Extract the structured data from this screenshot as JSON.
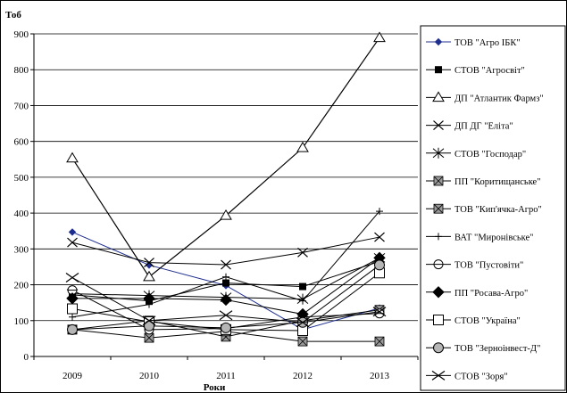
{
  "chart_data": {
    "type": "line",
    "title": "",
    "xlabel": "Роки",
    "ylabel": "Тоб",
    "categories": [
      "2009",
      "2010",
      "2011",
      "2012",
      "2013"
    ],
    "y_ticks": [
      "0",
      "100",
      "200",
      "300",
      "400",
      "500",
      "600",
      "700",
      "800",
      "900"
    ],
    "ylim": [
      0,
      900
    ],
    "grid": "horizontal",
    "legend_position": "right",
    "series": [
      {
        "name": "ТОВ \"Агро ІБК\"",
        "marker": "diamond-small",
        "color": "#1f2f8f",
        "values": [
          347,
          255,
          198,
          75,
          135
        ]
      },
      {
        "name": "СТОВ \"Агросвіт\"",
        "marker": "square-filled",
        "color": "#000000",
        "values": [
          172,
          155,
          205,
          195,
          265
        ]
      },
      {
        "name": "ДП \"Атлантик Фармз\"",
        "marker": "triangle-open",
        "color": "#000000",
        "values": [
          553,
          222,
          393,
          582,
          889
        ]
      },
      {
        "name": "ДП ДГ \"Еліта\"",
        "marker": "x",
        "color": "#000000",
        "values": [
          318,
          262,
          256,
          290,
          333
        ]
      },
      {
        "name": "СТОВ \"Господар\"",
        "marker": "asterisk",
        "color": "#000000",
        "values": [
          175,
          170,
          165,
          160,
          275
        ]
      },
      {
        "name": "ПП \"Коритищанське\"",
        "marker": "square-x-gray",
        "color": "#000000",
        "values": [
          75,
          100,
          55,
          100,
          130
        ]
      },
      {
        "name": "ТОВ \"Кип'ячка-Агро\"",
        "marker": "square-x-gray",
        "color": "#000000",
        "values": [
          75,
          52,
          70,
          42,
          42
        ]
      },
      {
        "name": "ВАТ \"Миронівське\"",
        "marker": "plus",
        "color": "#000000",
        "values": [
          110,
          145,
          222,
          155,
          405
        ]
      },
      {
        "name": "ТОВ \"Пустовіти\"",
        "marker": "circle-open",
        "color": "#000000",
        "values": [
          185,
          75,
          78,
          110,
          120
        ]
      },
      {
        "name": "ПП \"Росава-Агро\"",
        "marker": "diamond-filled",
        "color": "#000000",
        "values": [
          162,
          162,
          158,
          118,
          275
        ]
      },
      {
        "name": "СТОВ \"Україна\"",
        "marker": "square-open",
        "color": "#000000",
        "values": [
          133,
          97,
          75,
          72,
          233
        ]
      },
      {
        "name": "ТОВ \"Зерноінвест-Д\"",
        "marker": "circle-gray",
        "color": "#000000",
        "values": [
          75,
          85,
          80,
          95,
          255
        ]
      },
      {
        "name": "СТОВ \"Зоря\"",
        "marker": "x-wide",
        "color": "#000000",
        "values": [
          220,
          100,
          115,
          95,
          125
        ]
      }
    ]
  }
}
